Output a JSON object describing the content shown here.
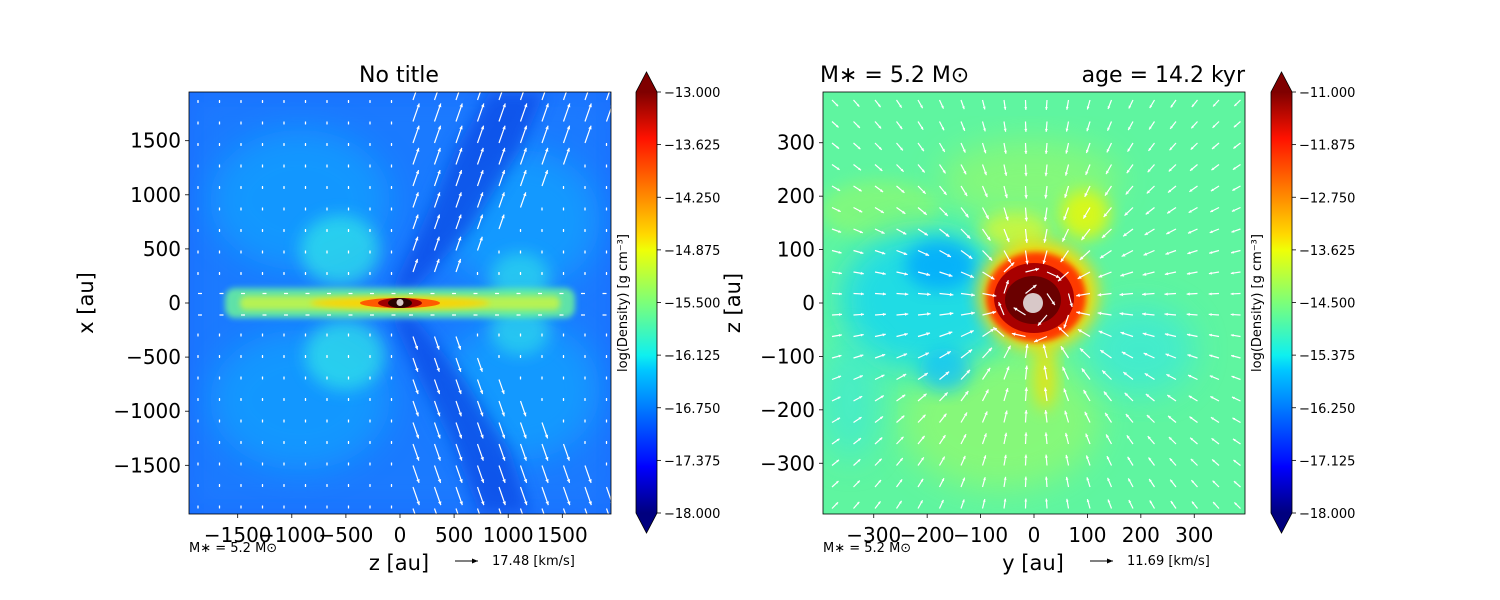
{
  "chart_data": [
    {
      "type": "heatmap",
      "title": "No title",
      "xlabel": "z [au]",
      "ylabel": "x [au]",
      "xlim": [
        -1950,
        1950
      ],
      "ylim": [
        -1950,
        1950
      ],
      "xticks": [
        -1500,
        -1000,
        -500,
        0,
        500,
        1000,
        1500
      ],
      "yticks": [
        -1500,
        -1000,
        -500,
        0,
        500,
        1000,
        1500
      ],
      "xtick_labels": [
        "−1500",
        "−1000",
        "−500",
        "0",
        "500",
        "1000",
        "1500"
      ],
      "ytick_labels": [
        "−1500",
        "−1000",
        "−500",
        "0",
        "500",
        "1000",
        "1500"
      ],
      "colorbar": {
        "label": "log(Density) [g cm⁻³]",
        "vmin": -18.0,
        "vmax": -13.0,
        "colormap": "jet",
        "ticks": [
          "−13.000",
          "−13.625",
          "−14.250",
          "−14.875",
          "−15.500",
          "−16.125",
          "−16.750",
          "−17.375",
          "−18.000"
        ]
      },
      "annotation_mass": "M∗ = 5.2 M⊙",
      "velocity_key": "17.48 [km/s]",
      "morphology": "edge-on disk along z=0 with bipolar low-density outflow cavities; central sink at origin"
    },
    {
      "type": "heatmap",
      "title_left": "M∗ = 5.2 M⊙",
      "title_right": "age = 14.2 kyr",
      "xlabel": "y [au]",
      "ylabel": "z [au]",
      "xlim": [
        -395,
        395
      ],
      "ylim": [
        -395,
        395
      ],
      "xticks": [
        -300,
        -200,
        -100,
        0,
        100,
        200,
        300
      ],
      "yticks": [
        -300,
        -200,
        -100,
        0,
        100,
        200,
        300
      ],
      "xtick_labels": [
        "−300",
        "−200",
        "−100",
        "0",
        "100",
        "200",
        "300"
      ],
      "ytick_labels": [
        "−300",
        "−200",
        "−100",
        "0",
        "100",
        "200",
        "300"
      ],
      "colorbar": {
        "label": "log(Density) [g cm⁻³]",
        "vmin": -18.0,
        "vmax": -11.0,
        "colormap": "jet",
        "ticks": [
          "−11.000",
          "−11.875",
          "−12.750",
          "−13.625",
          "−14.500",
          "−15.375",
          "−16.250",
          "−17.125",
          "−18.000"
        ]
      },
      "annotation_mass": "M∗ = 5.2 M⊙",
      "velocity_key": "11.69 [km/s]",
      "morphology": "dense core at origin with filaments; central sink particle"
    }
  ],
  "colors": {
    "sink": "#d8c8c8",
    "arrows": "#ffffff"
  }
}
